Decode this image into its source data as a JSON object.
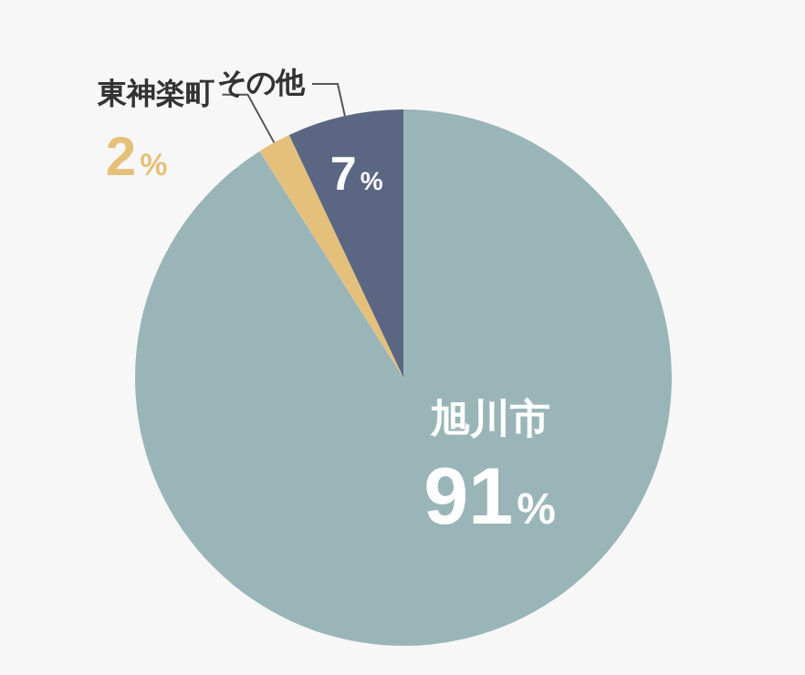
{
  "chart_data": {
    "type": "pie",
    "categories": [
      "旭川市",
      "東神楽町",
      "その他"
    ],
    "values": [
      91,
      2,
      7
    ],
    "colors": [
      "#9ab5b7",
      "#e5c07b",
      "#5b6782"
    ],
    "value_labels": [
      "91%",
      "2%",
      "7%"
    ]
  }
}
